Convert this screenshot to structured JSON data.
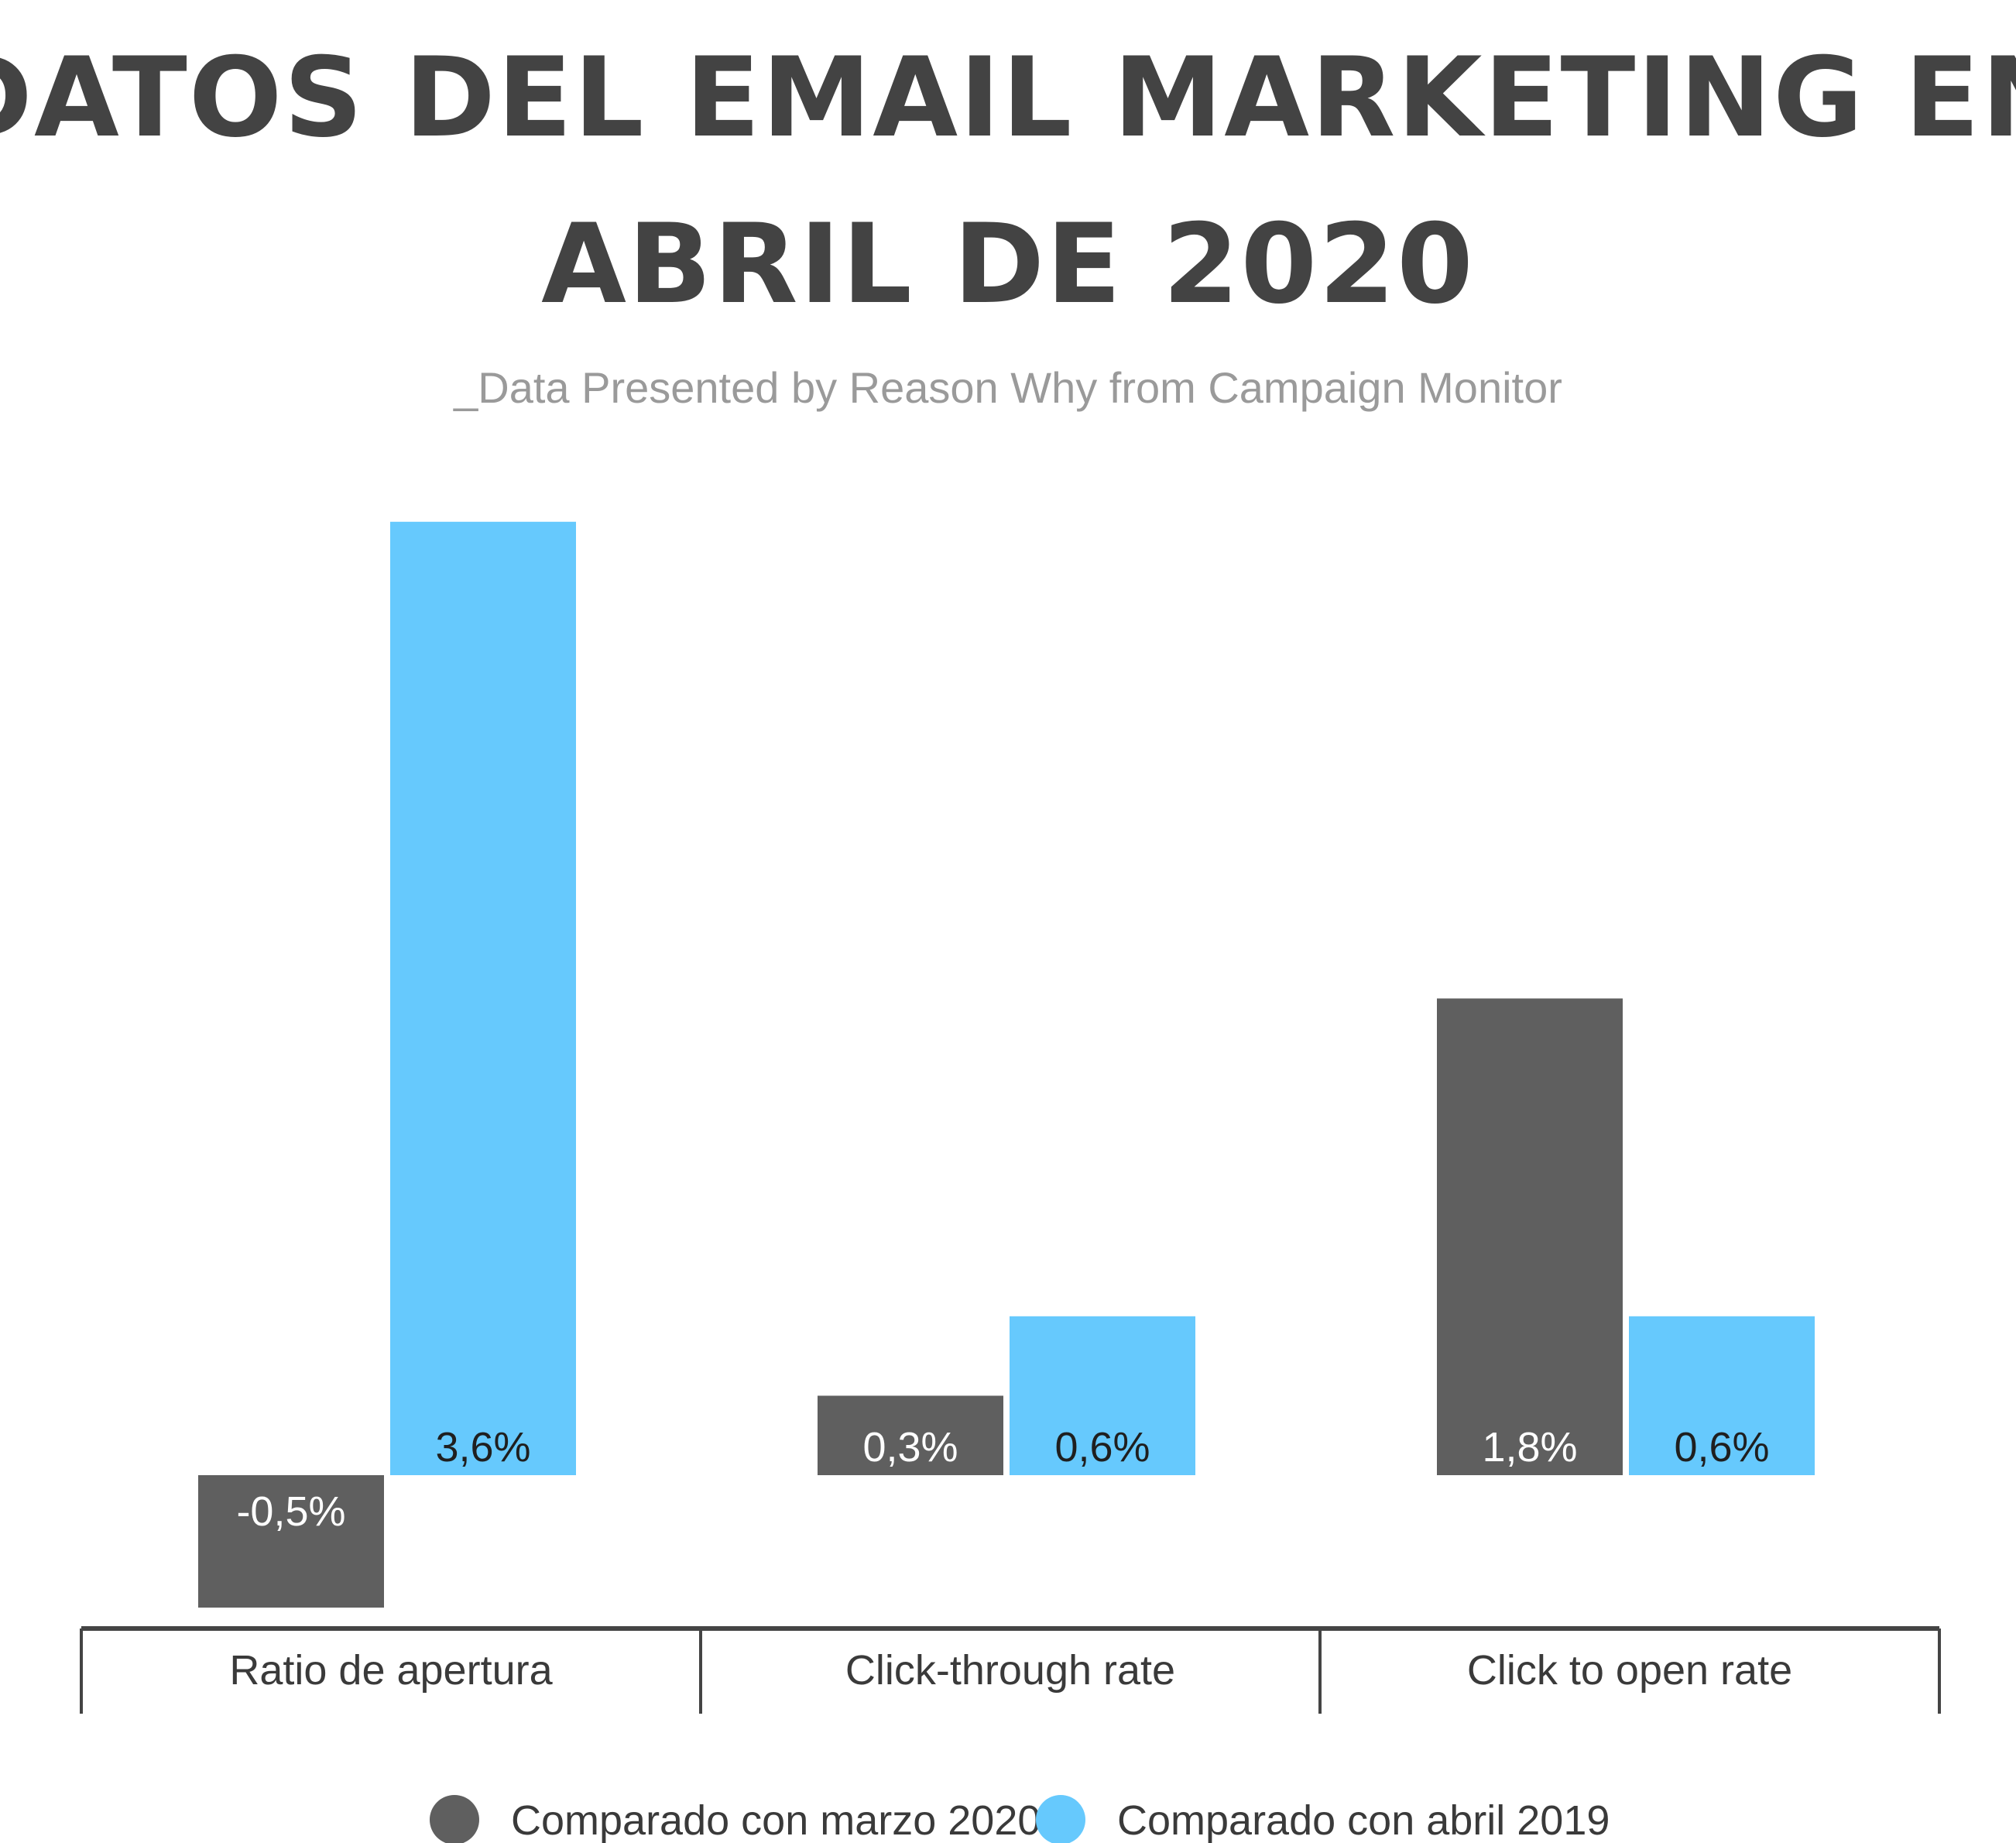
{
  "chart_data": {
    "type": "bar",
    "title_lines": [
      "DATOS DEL EMAIL MARKETING EN",
      "ABRIL DE 2020"
    ],
    "subtitle": "_Data Presented by Reason Why from Campaign Monitor",
    "categories": [
      "Ratio de apertura",
      "Click-through rate",
      "Click to open rate"
    ],
    "series": [
      {
        "name": "Comparado con marzo 2020",
        "color": "#5f5f5f",
        "label_color": "#ffffff",
        "values": [
          -0.5,
          0.3,
          1.8
        ],
        "labels": [
          "-0,5%",
          "0,3%",
          "1,8%"
        ]
      },
      {
        "name": "Comparado con abril 2019",
        "color": "#66c9fd",
        "label_color": "#1f1f1f",
        "values": [
          3.6,
          0.6,
          0.6
        ],
        "labels": [
          "3,6%",
          "0,6%",
          "0,6%"
        ]
      }
    ],
    "ylim": [
      -0.5,
      3.6
    ],
    "grid": false,
    "legend_position": "bottom",
    "colors": {
      "title": "#434343",
      "subtitle": "#9a9a9a",
      "axis": "#444444"
    }
  }
}
